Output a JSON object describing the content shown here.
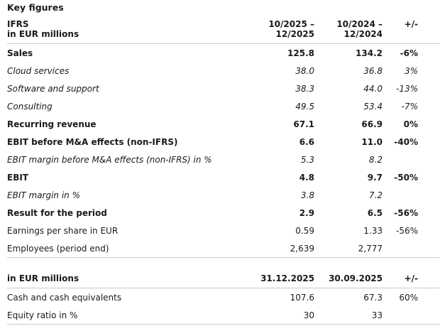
{
  "title": "Key figures",
  "colors": {
    "background": "#ffffff",
    "text": "#1a1a1a",
    "divider": "#c9c9c9"
  },
  "table1": {
    "header": {
      "label_line1": "IFRS",
      "label_line2": "in EUR millions",
      "col1_line1": "10/2025 –",
      "col1_line2": "12/2025",
      "col2_line1": "10/2024 –",
      "col2_line2": "12/2024",
      "change": "+/-"
    },
    "rows": [
      {
        "label": "Sales",
        "current": "125.8",
        "prior": "134.2",
        "change": "-6%"
      },
      {
        "label": "Cloud services",
        "current": "38.0",
        "prior": "36.8",
        "change": "3%"
      },
      {
        "label": "Software and support",
        "current": "38.3",
        "prior": "44.0",
        "change": "-13%"
      },
      {
        "label": "Consulting",
        "current": "49.5",
        "prior": "53.4",
        "change": "-7%"
      },
      {
        "label": "Recurring revenue",
        "current": "67.1",
        "prior": "66.9",
        "change": "0%"
      },
      {
        "label": "EBIT before M&A effects (non-IFRS)",
        "current": "6.6",
        "prior": "11.0",
        "change": "-40%"
      },
      {
        "label": "EBIT margin before M&A effects (non-IFRS) in %",
        "current": "5.3",
        "prior": "8.2",
        "change": ""
      },
      {
        "label": "EBIT",
        "current": "4.8",
        "prior": "9.7",
        "change": "-50%"
      },
      {
        "label": "EBIT margin in %",
        "current": "3.8",
        "prior": "7.2",
        "change": ""
      },
      {
        "label": "Result for the period",
        "current": "2.9",
        "prior": "6.5",
        "change": "-56%"
      },
      {
        "label": "Earnings per share in EUR",
        "current": "0.59",
        "prior": "1.33",
        "change": "-56%"
      },
      {
        "label": "Employees (period end)",
        "current": "2,639",
        "prior": "2,777",
        "change": ""
      }
    ]
  },
  "table2": {
    "header": {
      "label": "in EUR millions",
      "col1": "31.12.2025",
      "col2": "30.09.2025",
      "change": "+/-"
    },
    "rows": [
      {
        "label": "Cash and cash equivalents",
        "current": "107.6",
        "prior": "67.3",
        "change": "60%"
      },
      {
        "label": "Equity ratio in %",
        "current": "30",
        "prior": "33",
        "change": ""
      }
    ]
  }
}
